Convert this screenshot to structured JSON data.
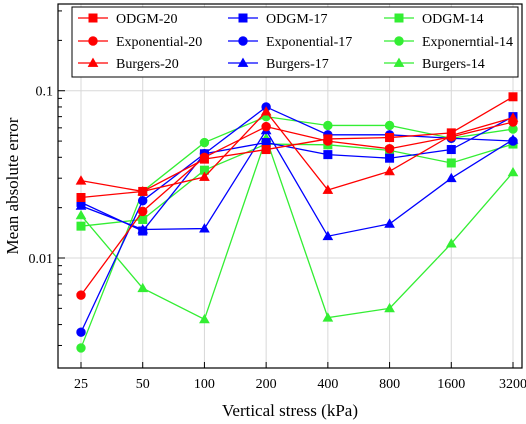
{
  "chart_data": {
    "type": "line",
    "title": "",
    "xlabel": "Vertical stress (kPa)",
    "ylabel": "Mean absolute error",
    "x_categories": [
      "25",
      "50",
      "100",
      "200",
      "400",
      "800",
      "1600",
      "3200"
    ],
    "yscale": "log",
    "ylim": [
      0.0022,
      0.33
    ],
    "y_ticks": [
      0.01,
      0.1
    ],
    "y_tick_labels": [
      "0.01",
      "0.1"
    ],
    "grid": true,
    "legend_placement": "top, 3 columns",
    "series": [
      {
        "name": "ODGM-20",
        "color": "#ff0000",
        "marker": "square",
        "values": [
          0.023,
          0.025,
          0.039,
          0.0445,
          0.0515,
          0.0525,
          0.056,
          0.092
        ]
      },
      {
        "name": "Exponential-20",
        "color": "#ff0000",
        "marker": "circle",
        "values": [
          0.006,
          0.019,
          0.04,
          0.061,
          0.05,
          0.045,
          0.053,
          0.065
        ]
      },
      {
        "name": "Burgers-20",
        "color": "#ff0000",
        "marker": "triangle",
        "values": [
          0.029,
          0.025,
          0.0305,
          0.075,
          0.0255,
          0.033,
          0.054,
          0.069
        ]
      },
      {
        "name": "ODGM-17",
        "color": "#0000ff",
        "marker": "square",
        "values": [
          0.0215,
          0.0145,
          0.042,
          0.049,
          0.0415,
          0.0395,
          0.0445,
          0.07
        ]
      },
      {
        "name": "Exponential-17",
        "color": "#0000ff",
        "marker": "circle",
        "values": [
          0.0036,
          0.022,
          0.042,
          0.08,
          0.0545,
          0.0545,
          0.052,
          0.05
        ]
      },
      {
        "name": "Burgers-17",
        "color": "#0000ff",
        "marker": "triangle",
        "values": [
          0.0205,
          0.0148,
          0.015,
          0.058,
          0.0135,
          0.016,
          0.03,
          0.051
        ]
      },
      {
        "name": "ODGM-14",
        "color": "#33ee33",
        "marker": "square",
        "values": [
          0.0155,
          0.017,
          0.0335,
          0.048,
          0.0475,
          0.044,
          0.037,
          0.048
        ]
      },
      {
        "name": "Exponerntial-14",
        "color": "#33ee33",
        "marker": "circle",
        "values": [
          0.0029,
          0.025,
          0.049,
          0.07,
          0.062,
          0.062,
          0.052,
          0.059
        ]
      },
      {
        "name": "Burgers-14",
        "color": "#33ee33",
        "marker": "triangle",
        "values": [
          0.018,
          0.0066,
          0.0043,
          0.052,
          0.0044,
          0.005,
          0.0122,
          0.0325
        ]
      }
    ]
  }
}
